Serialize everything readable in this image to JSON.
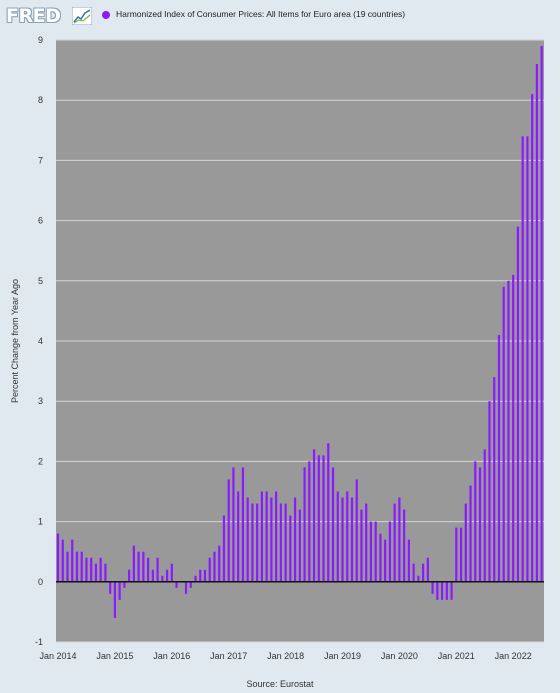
{
  "header": {
    "logo_text": "FRED",
    "legend_label": "Harmonized Index of Consumer Prices: All Items for Euro area (19 countries)",
    "legend_color": "#8c1aff"
  },
  "footer": {
    "source": "Source: Eurostat"
  },
  "chart_data": {
    "type": "bar",
    "title": "",
    "xlabel": "",
    "ylabel": "Percent Change from Year Ago",
    "ylim": [
      -1,
      9
    ],
    "y_ticks": [
      "-1",
      "0",
      "1",
      "2",
      "3",
      "4",
      "5",
      "6",
      "7",
      "8",
      "9"
    ],
    "x_ticks": [
      "Jan 2014",
      "Jan 2015",
      "Jan 2016",
      "Jan 2017",
      "Jan 2018",
      "Jan 2019",
      "Jan 2020",
      "Jan 2021",
      "Jan 2022"
    ],
    "grid": true,
    "plot_background": "#999999",
    "bar_color": "#8c1aff",
    "series": [
      {
        "start": "2014-01",
        "frequency": "monthly",
        "values": [
          0.8,
          0.7,
          0.5,
          0.7,
          0.5,
          0.5,
          0.4,
          0.4,
          0.3,
          0.4,
          0.3,
          -0.2,
          -0.6,
          -0.3,
          -0.1,
          0.2,
          0.6,
          0.5,
          0.5,
          0.4,
          0.2,
          0.4,
          0.1,
          0.2,
          0.3,
          -0.1,
          0.0,
          -0.2,
          -0.1,
          0.1,
          0.2,
          0.2,
          0.4,
          0.5,
          0.6,
          1.1,
          1.7,
          1.9,
          1.5,
          1.9,
          1.4,
          1.3,
          1.3,
          1.5,
          1.5,
          1.4,
          1.5,
          1.3,
          1.3,
          1.1,
          1.4,
          1.2,
          1.9,
          2.0,
          2.2,
          2.1,
          2.1,
          2.3,
          1.9,
          1.5,
          1.4,
          1.5,
          1.4,
          1.7,
          1.2,
          1.3,
          1.0,
          1.0,
          0.8,
          0.7,
          1.0,
          1.3,
          1.4,
          1.2,
          0.7,
          0.3,
          0.1,
          0.3,
          0.4,
          -0.2,
          -0.3,
          -0.3,
          -0.3,
          -0.3,
          0.9,
          0.9,
          1.3,
          1.6,
          2.0,
          1.9,
          2.2,
          3.0,
          3.4,
          4.1,
          4.9,
          5.0,
          5.1,
          5.9,
          7.4,
          7.4,
          8.1,
          8.6,
          8.9
        ]
      }
    ]
  }
}
